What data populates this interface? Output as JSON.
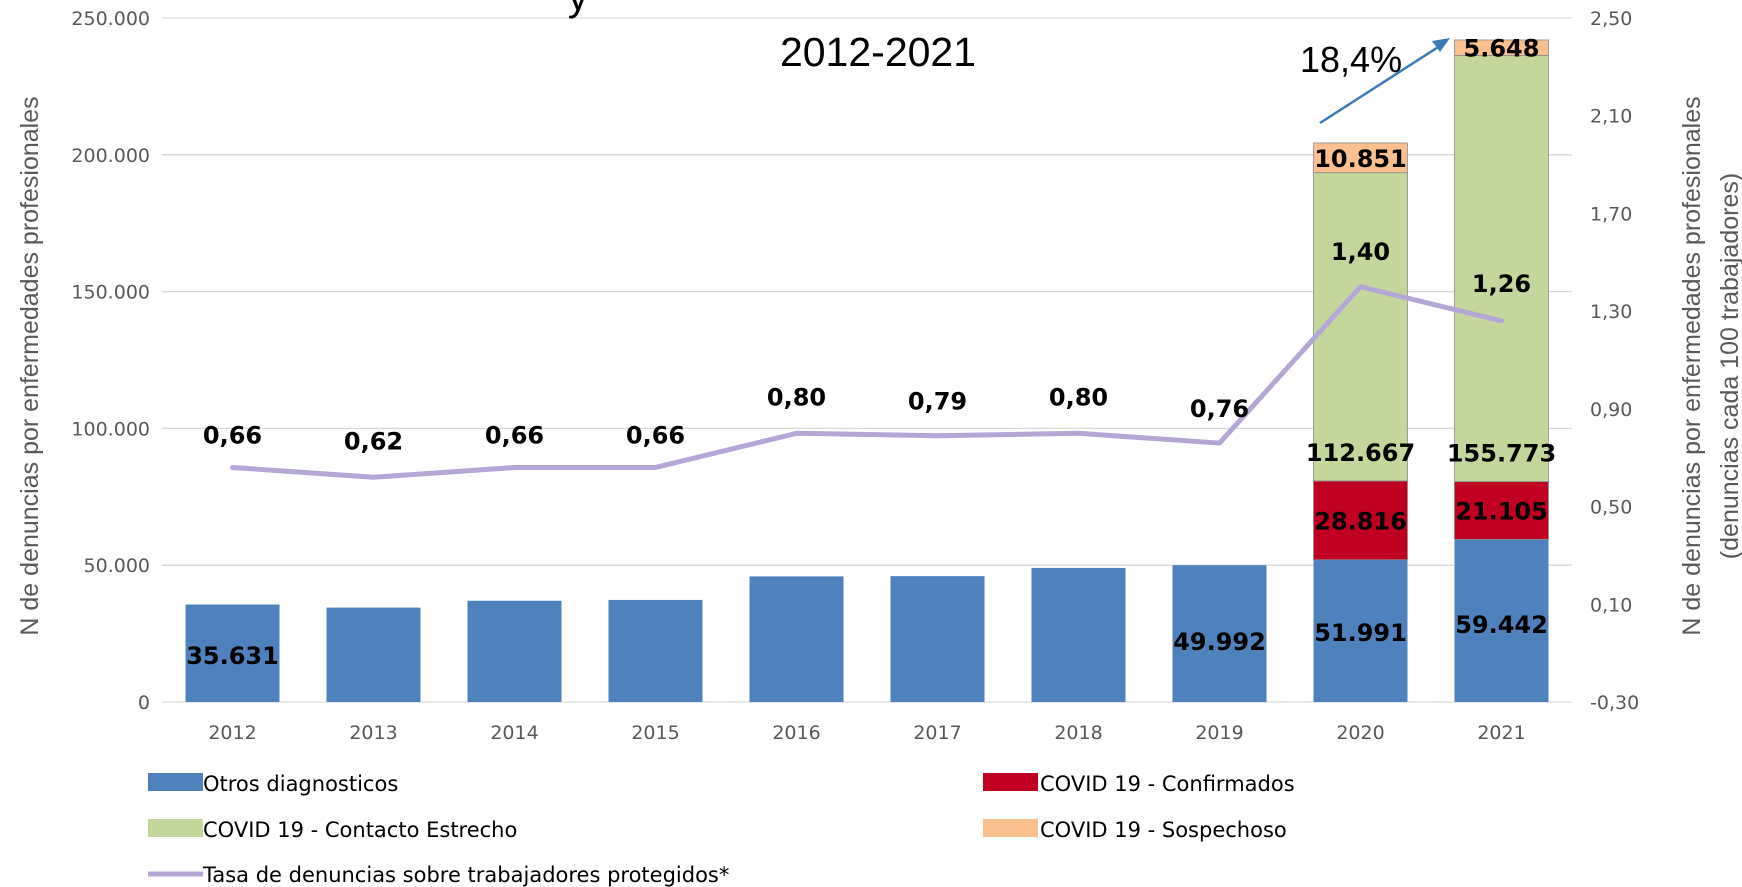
{
  "chart_data": {
    "type": "bar",
    "stacked": true,
    "title": "2012-2021",
    "categories": [
      "2012",
      "2013",
      "2014",
      "2015",
      "2016",
      "2017",
      "2018",
      "2019",
      "2020",
      "2021"
    ],
    "category_labels": [
      "2012",
      "2013",
      "2014",
      "2015",
      "2016",
      "2017",
      "2018",
      "2019",
      "2020",
      "2021"
    ],
    "ylabel": "N de denuncias por enfermedades profesionales",
    "y2label_line1": "N de denuncias por enfermedades profesionales",
    "y2label_line2": "(denuncias cada 100 trabajadores)",
    "ylim": [
      0,
      250000
    ],
    "y_ticks": [
      0,
      50000,
      100000,
      150000,
      200000,
      250000
    ],
    "y_tick_labels": [
      "0",
      "50.000",
      "100.000",
      "150.000",
      "200.000",
      "250.000"
    ],
    "y2lim": [
      -0.3,
      2.5
    ],
    "y2_ticks": [
      -0.3,
      0.1,
      0.5,
      0.9,
      1.3,
      1.7,
      2.1,
      2.5
    ],
    "y2_tick_labels": [
      "-0,30",
      "0,10",
      "0,50",
      "0,90",
      "1,30",
      "1,70",
      "2,10",
      "2,50"
    ],
    "grid": true,
    "legend_position": "bottom",
    "series": [
      {
        "name": "Otros diagnosticos",
        "color": "#4f81bd",
        "values": [
          35631,
          34500,
          37000,
          37300,
          45900,
          46000,
          49000,
          49992,
          51991,
          59442
        ],
        "labels": [
          "35.631",
          "",
          "",
          "",
          "",
          "",
          "",
          "49.992",
          "51.991",
          "59.442"
        ]
      },
      {
        "name": "COVID 19 - Confirmados",
        "color": "#c00020",
        "values": [
          0,
          0,
          0,
          0,
          0,
          0,
          0,
          0,
          28816,
          21105
        ],
        "labels": [
          "",
          "",
          "",
          "",
          "",
          "",
          "",
          "",
          "28.816",
          "21.105"
        ]
      },
      {
        "name": "COVID 19 - Contacto Estrecho",
        "color": "#c3d69b",
        "values": [
          0,
          0,
          0,
          0,
          0,
          0,
          0,
          0,
          112667,
          155773
        ],
        "labels": [
          "",
          "",
          "",
          "",
          "",
          "",
          "",
          "",
          "112.667",
          "155.773"
        ]
      },
      {
        "name": "COVID 19 - Sospechoso",
        "color": "#fac090",
        "values": [
          0,
          0,
          0,
          0,
          0,
          0,
          0,
          0,
          10851,
          5648
        ],
        "labels": [
          "",
          "",
          "",
          "",
          "",
          "",
          "",
          "",
          "10.851",
          "5.648"
        ]
      }
    ],
    "line": {
      "name": "Tasa de denuncias sobre trabajadores protegidos*",
      "color": "#b4a7d6",
      "values": [
        0.66,
        0.62,
        0.66,
        0.66,
        0.8,
        0.79,
        0.8,
        0.76,
        1.4,
        1.26
      ],
      "labels": [
        "0,66",
        "0,62",
        "0,66",
        "0,66",
        "0,80",
        "0,79",
        "0,80",
        "0,76",
        "1,40",
        "1,26"
      ]
    },
    "annotation": {
      "text": "18,4%",
      "color": "#3d7ab8"
    },
    "fragment_title": "y"
  }
}
